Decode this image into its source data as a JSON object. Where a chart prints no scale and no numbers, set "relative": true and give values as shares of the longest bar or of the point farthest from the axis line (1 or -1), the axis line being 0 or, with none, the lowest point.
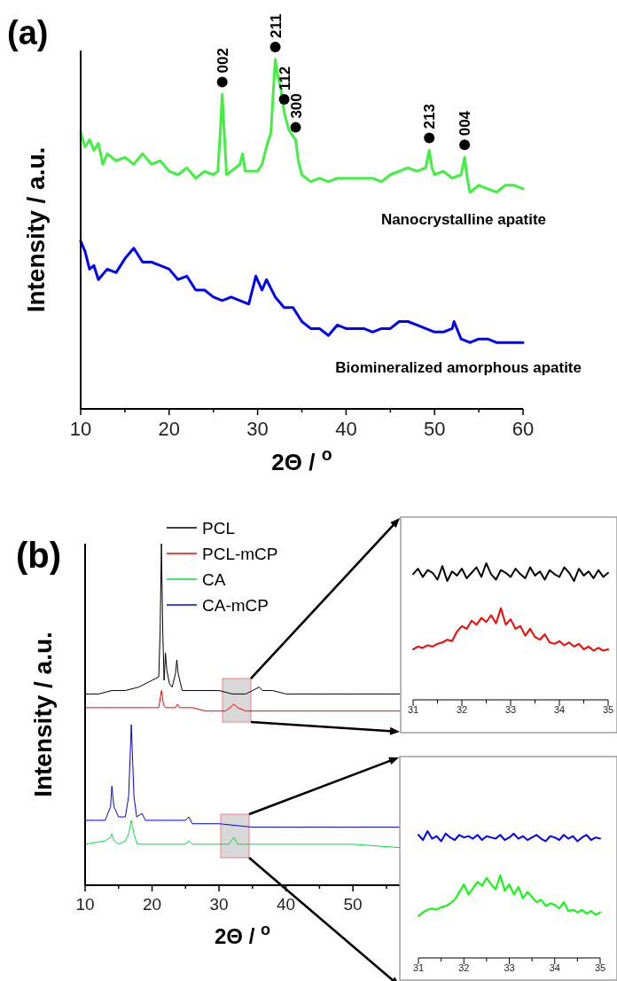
{
  "chart_data": [
    {
      "type": "line",
      "title": "(a)",
      "xlabel": "2Θ / $^{o}$",
      "ylabel": "Intensity / a.u.",
      "relative": true,
      "xlim": [
        10,
        60
      ],
      "xticks": [
        10,
        {
          "value": 15,
          "label": null
        },
        20,
        {
          "value": 25,
          "label": null
        },
        30,
        {
          "value": 35,
          "label": null
        },
        40,
        {
          "value": 45,
          "label": null
        },
        50,
        {
          "value": 55,
          "label": null
        },
        60
      ],
      "series": [
        {
          "name": "Nanocrystalline apatite",
          "color": "#40f040",
          "x": [
            10,
            10.5,
            11,
            11.5,
            12,
            12.5,
            13,
            14,
            15,
            16,
            17,
            18,
            19,
            20,
            21,
            22,
            23,
            24,
            25,
            25.5,
            25.8,
            26,
            26.2,
            26.5,
            27,
            28,
            28.3,
            28.6,
            29,
            30,
            30.5,
            31,
            31.5,
            31.8,
            32,
            32.3,
            32.6,
            33,
            33.5,
            34,
            34.3,
            34.6,
            35,
            36,
            37,
            38,
            39,
            40,
            41,
            42,
            43,
            44,
            45,
            46,
            47,
            48,
            49,
            49.4,
            49.7,
            50,
            51,
            52,
            53,
            53.4,
            53.7,
            54,
            55,
            56,
            57,
            58,
            59,
            60
          ],
          "values": [
            0.79,
            0.75,
            0.77,
            0.74,
            0.76,
            0.7,
            0.73,
            0.71,
            0.72,
            0.7,
            0.73,
            0.7,
            0.71,
            0.68,
            0.67,
            0.69,
            0.66,
            0.68,
            0.67,
            0.68,
            0.8,
            0.9,
            0.8,
            0.67,
            0.68,
            0.7,
            0.73,
            0.68,
            0.68,
            0.68,
            0.7,
            0.75,
            0.79,
            0.92,
            1,
            0.95,
            0.92,
            0.85,
            0.8,
            0.78,
            0.77,
            0.71,
            0.67,
            0.65,
            0.66,
            0.65,
            0.66,
            0.66,
            0.66,
            0.66,
            0.66,
            0.65,
            0.67,
            0.68,
            0.69,
            0.68,
            0.69,
            0.74,
            0.69,
            0.67,
            0.68,
            0.66,
            0.67,
            0.72,
            0.66,
            0.62,
            0.64,
            0.63,
            0.62,
            0.64,
            0.64,
            0.63
          ]
        },
        {
          "name": "Biomineralized amorphous apatite",
          "color": "#0000ff",
          "x": [
            10,
            10.5,
            11,
            11.5,
            12,
            13,
            14,
            15,
            16,
            17,
            18,
            19,
            20,
            21,
            22,
            23,
            24,
            25,
            26,
            27,
            28,
            29,
            29.8,
            30.5,
            31,
            32,
            33,
            34,
            35,
            36,
            37,
            38,
            39,
            40,
            41,
            42,
            43,
            44,
            45,
            46,
            47,
            48,
            49,
            50,
            51,
            52,
            52.2,
            53,
            54,
            55,
            56,
            57,
            58,
            59,
            60
          ],
          "values": [
            0.48,
            0.45,
            0.4,
            0.41,
            0.37,
            0.4,
            0.39,
            0.43,
            0.46,
            0.42,
            0.42,
            0.41,
            0.4,
            0.37,
            0.38,
            0.34,
            0.34,
            0.32,
            0.31,
            0.32,
            0.31,
            0.3,
            0.38,
            0.34,
            0.37,
            0.32,
            0.29,
            0.29,
            0.25,
            0.23,
            0.23,
            0.21,
            0.24,
            0.23,
            0.23,
            0.23,
            0.22,
            0.23,
            0.23,
            0.25,
            0.25,
            0.24,
            0.23,
            0.22,
            0.22,
            0.23,
            0.25,
            0.2,
            0.19,
            0.2,
            0.2,
            0.19,
            0.19,
            0.19,
            0.19
          ]
        }
      ],
      "annotations": [
        {
          "text": "002",
          "x": 26,
          "y": 0.9
        },
        {
          "text": "211",
          "x": 32,
          "y": 1
        },
        {
          "text": "112",
          "x": 33,
          "y": 0.85
        },
        {
          "text": "300",
          "x": 34.3,
          "y": 0.77
        },
        {
          "text": "213",
          "x": 49.4,
          "y": 0.74
        },
        {
          "text": "004",
          "x": 53.4,
          "y": 0.72
        }
      ]
    },
    {
      "type": "line",
      "title": "(b)",
      "xlabel": "2Θ / $^{o}$",
      "ylabel": "Intensity / a.u.",
      "relative": true,
      "legend": "top",
      "xlim": [
        10,
        57
      ],
      "xticks": [
        10,
        {
          "value": 15,
          "label": null
        },
        20,
        {
          "value": 25,
          "label": null
        },
        30,
        {
          "value": 35,
          "label": null
        },
        40,
        {
          "value": 45,
          "label": null
        },
        50,
        {
          "value": 55,
          "label": null
        }
      ],
      "series": [
        {
          "name": "PCL",
          "color": "#000000",
          "x": [
            10,
            12,
            14,
            16,
            18,
            19,
            20,
            21,
            21.2,
            21.4,
            21.6,
            21.8,
            22,
            22.2,
            22.6,
            23,
            23.5,
            23.7,
            23.9,
            24.5,
            26,
            28,
            30,
            32,
            34,
            35,
            36,
            36.5,
            38,
            40,
            45,
            50,
            55,
            57
          ],
          "values": [
            0.56,
            0.56,
            0.57,
            0.57,
            0.58,
            0.59,
            0.6,
            0.61,
            0.74,
            1,
            0.74,
            0.6,
            0.68,
            0.63,
            0.59,
            0.58,
            0.62,
            0.66,
            0.62,
            0.57,
            0.57,
            0.57,
            0.57,
            0.56,
            0.56,
            0.57,
            0.58,
            0.57,
            0.57,
            0.56,
            0.56,
            0.56,
            0.56,
            0.56
          ]
        },
        {
          "name": "PCL-mCP",
          "color": "#ff0000",
          "x": [
            10,
            15,
            20,
            21,
            21.4,
            21.7,
            22,
            23.5,
            23.8,
            24.1,
            26,
            28,
            30,
            31,
            31.6,
            32.2,
            32.8,
            34,
            36,
            40,
            45,
            50,
            57
          ],
          "values": [
            0.52,
            0.52,
            0.52,
            0.52,
            0.57,
            0.53,
            0.52,
            0.52,
            0.53,
            0.52,
            0.52,
            0.51,
            0.51,
            0.51,
            0.52,
            0.53,
            0.52,
            0.51,
            0.51,
            0.51,
            0.51,
            0.51,
            0.51
          ]
        },
        {
          "name": "CA",
          "color": "#00e040",
          "x": [
            10,
            13,
            13.8,
            14,
            14.3,
            15,
            16,
            16.5,
            16.9,
            17.3,
            17.8,
            20,
            25,
            25.5,
            26,
            30,
            31.5,
            32.2,
            32.8,
            34,
            40,
            50,
            57
          ],
          "values": [
            0.12,
            0.13,
            0.14,
            0.15,
            0.13,
            0.12,
            0.13,
            0.15,
            0.19,
            0.15,
            0.12,
            0.12,
            0.12,
            0.13,
            0.12,
            0.12,
            0.12,
            0.14,
            0.12,
            0.12,
            0.12,
            0.12,
            0.11
          ]
        },
        {
          "name": "CA-mCP",
          "color": "#0000ff",
          "x": [
            10,
            12,
            13,
            13.8,
            14,
            14.3,
            15,
            16,
            16.5,
            16.9,
            17.3,
            17.7,
            18.5,
            19,
            22,
            25,
            25.5,
            26,
            28,
            30,
            35,
            40,
            50,
            57
          ],
          "values": [
            0.19,
            0.19,
            0.19,
            0.23,
            0.29,
            0.23,
            0.2,
            0.2,
            0.26,
            0.47,
            0.26,
            0.2,
            0.21,
            0.19,
            0.19,
            0.19,
            0.2,
            0.18,
            0.18,
            0.18,
            0.17,
            0.17,
            0.17,
            0.17
          ]
        }
      ]
    },
    {
      "type": "line",
      "relative": true,
      "xlim": [
        31,
        35
      ],
      "xticks": [
        31,
        {
          "value": 31.5,
          "label": null
        },
        32,
        {
          "value": 32.5,
          "label": null
        },
        33,
        {
          "value": 33.5,
          "label": null
        },
        34,
        {
          "value": 34.5,
          "label": null
        },
        35
      ],
      "x": [
        31,
        31.1,
        31.2,
        31.3,
        31.4,
        31.5,
        31.6,
        31.7,
        31.8,
        31.9,
        32,
        32.1,
        32.2,
        32.3,
        32.4,
        32.5,
        32.6,
        32.7,
        32.8,
        32.9,
        33,
        33.1,
        33.2,
        33.3,
        33.4,
        33.5,
        33.6,
        33.7,
        33.8,
        33.9,
        34,
        34.1,
        34.2,
        34.3,
        34.4,
        34.5,
        34.6,
        34.7,
        34.8,
        34.9,
        35
      ],
      "series": [
        {
          "color": "#000000",
          "values": [
            0.92,
            0.96,
            0.9,
            0.95,
            0.93,
            0.88,
            0.98,
            0.87,
            0.94,
            0.91,
            0.96,
            0.89,
            0.93,
            0.97,
            0.9,
            1,
            0.92,
            0.88,
            0.95,
            0.93,
            0.9,
            0.96,
            0.92,
            0.89,
            0.97,
            0.91,
            0.94,
            0.88,
            0.95,
            0.92,
            0.9,
            0.97,
            0.93,
            0.87,
            0.96,
            0.91,
            0.94,
            0.89,
            0.95,
            0.9,
            0.93
          ]
        },
        {
          "color": "#ff0000",
          "values": [
            0.37,
            0.39,
            0.38,
            0.4,
            0.39,
            0.41,
            0.42,
            0.44,
            0.43,
            0.5,
            0.54,
            0.52,
            0.58,
            0.55,
            0.6,
            0.57,
            0.62,
            0.56,
            0.67,
            0.55,
            0.59,
            0.52,
            0.54,
            0.47,
            0.52,
            0.46,
            0.44,
            0.48,
            0.42,
            0.41,
            0.43,
            0.4,
            0.42,
            0.39,
            0.41,
            0.37,
            0.39,
            0.36,
            0.38,
            0.36,
            0.37
          ]
        }
      ]
    },
    {
      "type": "line",
      "relative": true,
      "xlim": [
        31,
        35
      ],
      "xticks": [
        31,
        {
          "value": 31.5,
          "label": null
        },
        32,
        {
          "value": 32.5,
          "label": null
        },
        33,
        {
          "value": 33.5,
          "label": null
        },
        34,
        {
          "value": 34.5,
          "label": null
        },
        35
      ],
      "x": [
        31,
        31.1,
        31.2,
        31.3,
        31.4,
        31.5,
        31.6,
        31.7,
        31.8,
        31.9,
        32,
        32.1,
        32.2,
        32.3,
        32.4,
        32.5,
        32.6,
        32.7,
        32.8,
        32.9,
        33,
        33.1,
        33.2,
        33.3,
        33.4,
        33.5,
        33.6,
        33.7,
        33.8,
        33.9,
        34,
        34.1,
        34.2,
        34.3,
        34.4,
        34.5,
        34.6,
        34.7,
        34.8,
        34.9,
        35
      ],
      "series": [
        {
          "color": "#0000ff",
          "values": [
            0.97,
            0.93,
            1,
            0.94,
            0.96,
            0.92,
            0.98,
            0.95,
            0.93,
            0.97,
            0.95,
            0.96,
            0.94,
            0.97,
            0.93,
            0.96,
            0.95,
            0.94,
            0.97,
            0.93,
            0.95,
            0.98,
            0.94,
            0.96,
            0.93,
            0.95,
            0.97,
            0.94,
            0.92,
            0.96,
            0.95,
            0.93,
            0.97,
            0.94,
            0.96,
            0.92,
            0.95,
            0.97,
            0.93,
            0.95,
            0.94
          ]
        },
        {
          "color": "#00ff00",
          "values": [
            0.33,
            0.36,
            0.38,
            0.39,
            0.38,
            0.4,
            0.41,
            0.43,
            0.46,
            0.52,
            0.58,
            0.5,
            0.55,
            0.6,
            0.57,
            0.63,
            0.58,
            0.54,
            0.65,
            0.53,
            0.58,
            0.5,
            0.56,
            0.47,
            0.52,
            0.48,
            0.44,
            0.46,
            0.41,
            0.43,
            0.42,
            0.39,
            0.44,
            0.37,
            0.38,
            0.36,
            0.38,
            0.35,
            0.37,
            0.34,
            0.36
          ]
        }
      ]
    }
  ]
}
